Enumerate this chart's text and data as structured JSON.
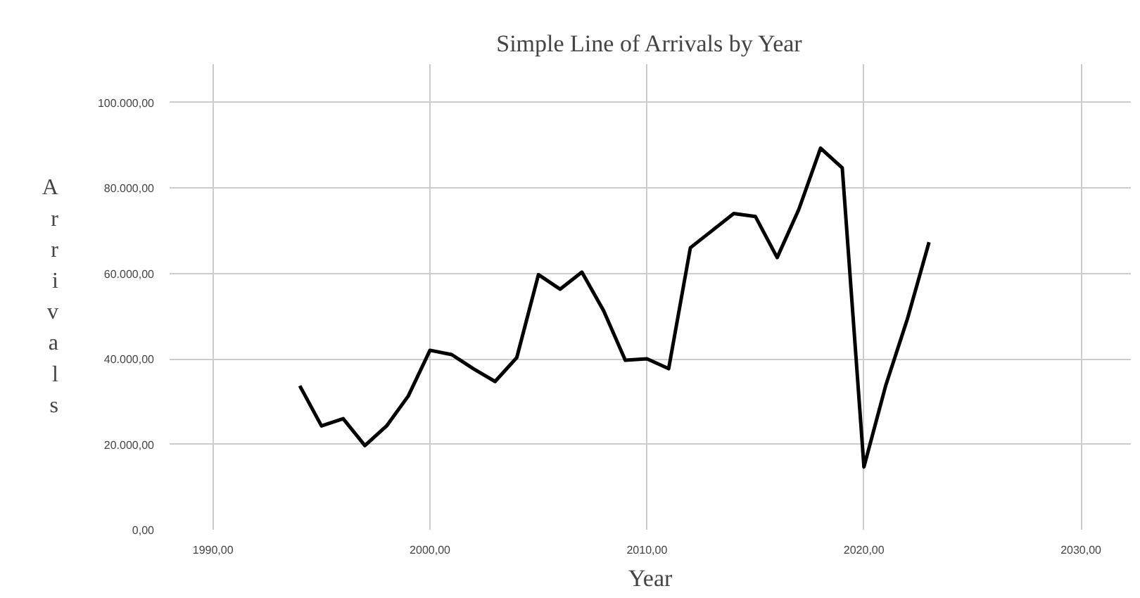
{
  "chart_data": {
    "type": "line",
    "title": "Simple Line of Arrivals by Year",
    "xlabel": "Year",
    "ylabel": "Arrivals",
    "x": [
      1994,
      1995,
      1996,
      1997,
      1998,
      1999,
      2000,
      2001,
      2002,
      2003,
      2004,
      2005,
      2006,
      2007,
      2008,
      2009,
      2010,
      2011,
      2012,
      2013,
      2014,
      2015,
      2016,
      2017,
      2018,
      2019,
      2020,
      2021,
      2022,
      2023
    ],
    "series": [
      {
        "color": "#000000",
        "values": [
          33700,
          24300,
          26000,
          19700,
          24300,
          31300,
          42000,
          41000,
          37700,
          34700,
          40300,
          59700,
          56300,
          60300,
          51300,
          39700,
          40000,
          37700,
          66000,
          70000,
          74000,
          73300,
          63700,
          75000,
          89300,
          84700,
          14700,
          33700,
          49300,
          67300
        ]
      }
    ],
    "xlim": [
      1988,
      2032.3
    ],
    "ylim": [
      0,
      109000
    ],
    "xticks": [
      {
        "value": 1990,
        "label": "1990,00"
      },
      {
        "value": 2000,
        "label": "2000,00"
      },
      {
        "value": 2010,
        "label": "2010,00"
      },
      {
        "value": 2020,
        "label": "2020,00"
      },
      {
        "value": 2030,
        "label": "2030,00"
      }
    ],
    "yticks": [
      {
        "value": 0,
        "label": "0,00"
      },
      {
        "value": 20000,
        "label": "20.000,00"
      },
      {
        "value": 40000,
        "label": "40.000,00"
      },
      {
        "value": 60000,
        "label": "60.000,00"
      },
      {
        "value": 80000,
        "label": "80.000,00"
      },
      {
        "value": 100000,
        "label": "100.000,00"
      }
    ],
    "grid": true,
    "marker": "none",
    "line_style": "solid"
  }
}
